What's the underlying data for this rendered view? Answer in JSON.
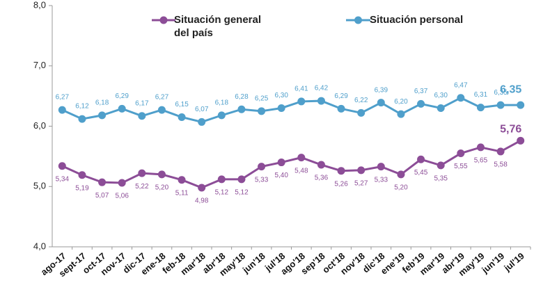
{
  "chart_data": {
    "type": "line",
    "categories": [
      "ago-17",
      "sept-17",
      "oct-17",
      "nov-17",
      "dic-17",
      "ene-18",
      "feb-18",
      "mar'18",
      "abr'18",
      "may'18",
      "jun'18",
      "jul'18",
      "ago'18",
      "sep'18",
      "oct'18",
      "nov'18",
      "dic'18",
      "ene'19",
      "feb'19",
      "mar'19",
      "abr'19",
      "may'19",
      "jun'19",
      "jul'19"
    ],
    "series": [
      {
        "name": "Situación general del país",
        "color": "#8c4d97",
        "values": [
          5.34,
          5.19,
          5.07,
          5.06,
          5.22,
          5.2,
          5.11,
          4.98,
          5.12,
          5.12,
          5.33,
          5.4,
          5.48,
          5.36,
          5.26,
          5.27,
          5.33,
          5.2,
          5.45,
          5.35,
          5.55,
          5.65,
          5.58,
          5.76
        ],
        "value_labels": [
          "5,34",
          "5,19",
          "5,07",
          "5,06",
          "5,22",
          "5,20",
          "5,11",
          "4,98",
          "5,12",
          "5,12",
          "5,33",
          "5,40",
          "5,48",
          "5,36",
          "5,26",
          "5,27",
          "5,33",
          "5,20",
          "5,45",
          "5,35",
          "5,55",
          "5,65",
          "5,58",
          "5,76"
        ]
      },
      {
        "name": "Situación personal",
        "color": "#4f9fcb",
        "values": [
          6.27,
          6.12,
          6.18,
          6.29,
          6.17,
          6.27,
          6.15,
          6.07,
          6.18,
          6.28,
          6.25,
          6.3,
          6.41,
          6.42,
          6.29,
          6.22,
          6.39,
          6.2,
          6.37,
          6.3,
          6.47,
          6.31,
          6.35,
          6.35
        ],
        "value_labels": [
          "6,27",
          "6,12",
          "6,18",
          "6,29",
          "6,17",
          "6,27",
          "6,15",
          "6,07",
          "6,18",
          "6,28",
          "6,25",
          "6,30",
          "6,41",
          "6,42",
          "6,29",
          "6,22",
          "6,39",
          "6,20",
          "6,37",
          "6,30",
          "6,47",
          "6,31",
          "6,35",
          "6,35"
        ]
      }
    ],
    "ylim": [
      4,
      8
    ],
    "yticks": [
      {
        "value": 4,
        "label": "4,0"
      },
      {
        "value": 5,
        "label": "5,0"
      },
      {
        "value": 6,
        "label": "6,0"
      },
      {
        "value": 7,
        "label": "7,0"
      },
      {
        "value": 8,
        "label": "8,0"
      }
    ]
  }
}
